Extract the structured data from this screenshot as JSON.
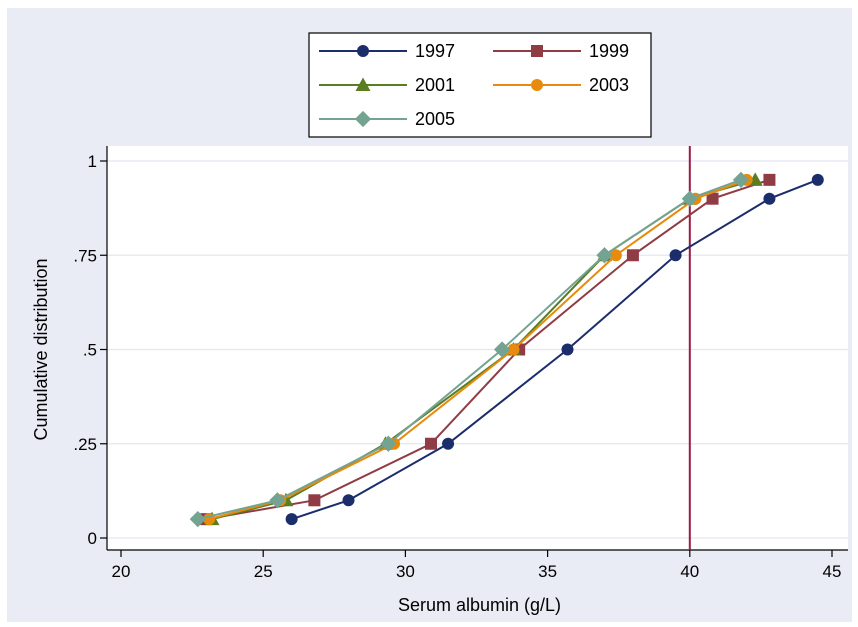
{
  "chart_data": {
    "type": "line",
    "title": "",
    "xlabel": "Serum albumin (g/L)",
    "ylabel": "Cumulative distribution",
    "xlim": [
      20,
      45
    ],
    "ylim": [
      0,
      1
    ],
    "xticks": [
      20,
      25,
      30,
      35,
      40,
      45
    ],
    "xtick_labels": [
      "20",
      "25",
      "30",
      "35",
      "40",
      "45"
    ],
    "yticks": [
      0,
      0.25,
      0.5,
      0.75,
      1
    ],
    "ytick_labels": [
      "0",
      ".25",
      ".5",
      ".75",
      "1"
    ],
    "grid": "horizontal",
    "legend_position": "top",
    "reference_line": {
      "axis": "x",
      "value": 40,
      "color": "#9b1b41"
    },
    "colors": {
      "background": "#e9ecf5",
      "plot_background": "#ffffff",
      "grid": "#e3e7f2"
    },
    "series": [
      {
        "name": "1997",
        "color": "#1b2d6b",
        "marker": "circle",
        "x": [
          26.0,
          28.0,
          31.5,
          35.7,
          39.5,
          42.8,
          44.5
        ],
        "y": [
          0.05,
          0.1,
          0.25,
          0.5,
          0.75,
          0.9,
          0.95
        ]
      },
      {
        "name": "1999",
        "color": "#903c45",
        "marker": "square",
        "x": [
          23.0,
          26.8,
          30.9,
          34.0,
          38.0,
          40.8,
          42.8
        ],
        "y": [
          0.05,
          0.1,
          0.25,
          0.5,
          0.75,
          0.9,
          0.95
        ]
      },
      {
        "name": "2001",
        "color": "#5a7d22",
        "marker": "triangle",
        "x": [
          23.2,
          25.8,
          29.3,
          33.8,
          37.0,
          40.0,
          42.3
        ],
        "y": [
          0.05,
          0.1,
          0.25,
          0.5,
          0.75,
          0.9,
          0.95
        ]
      },
      {
        "name": "2003",
        "color": "#e88a0c",
        "marker": "circle",
        "x": [
          23.1,
          25.6,
          29.6,
          33.8,
          37.4,
          40.2,
          42.0
        ],
        "y": [
          0.05,
          0.1,
          0.25,
          0.5,
          0.75,
          0.9,
          0.95
        ]
      },
      {
        "name": "2005",
        "color": "#75a391",
        "marker": "diamond",
        "x": [
          22.7,
          25.5,
          29.4,
          33.4,
          37.0,
          40.0,
          41.8
        ],
        "y": [
          0.05,
          0.1,
          0.25,
          0.5,
          0.75,
          0.9,
          0.95
        ]
      }
    ]
  }
}
